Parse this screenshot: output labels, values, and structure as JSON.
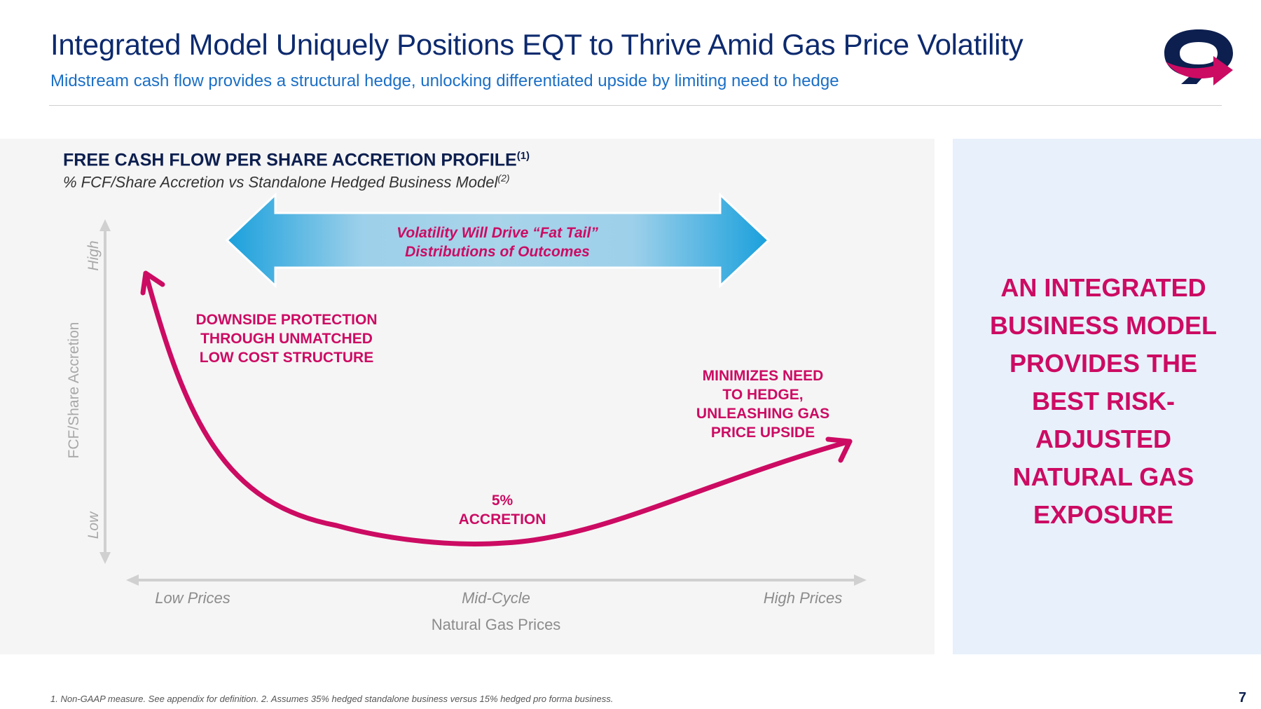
{
  "header": {
    "title": "Integrated Model Uniquely Positions EQT to Thrive Amid Gas Price Volatility",
    "subtitle": "Midstream cash flow provides a structural hedge, unlocking differentiated upside by limiting need to hedge"
  },
  "chart": {
    "title": "FREE CASH FLOW PER SHARE ACCRETION PROFILE",
    "title_footnote": "(1)",
    "subtitle": "% FCF/Share Accretion vs Standalone Hedged Business Model",
    "subtitle_footnote": "(2)",
    "volatility_banner": [
      "Volatility Will Drive “Fat Tail”",
      "Distributions of Outcomes"
    ],
    "downside_label": [
      "DOWNSIDE PROTECTION",
      "THROUGH UNMATCHED",
      "LOW COST STRUCTURE"
    ],
    "upside_label": [
      "MINIMIZES NEED",
      "TO HEDGE,",
      "UNLEASHING GAS",
      "PRICE UPSIDE"
    ],
    "accretion_label": [
      "5%",
      "ACCRETION"
    ]
  },
  "chart_data": {
    "type": "line",
    "title": "FREE CASH FLOW PER SHARE ACCRETION PROFILE",
    "xlabel": "Natural Gas Prices",
    "ylabel": "FCF/Share Accretion",
    "x_tick_labels": [
      "Low Prices",
      "Mid-Cycle",
      "High Prices"
    ],
    "y_tick_labels": [
      "Low",
      "High"
    ],
    "series": [
      {
        "name": "FCF/Share Accretion",
        "points": [
          [
            "Low Prices",
            "High"
          ],
          [
            "Mid-Cycle",
            "5%"
          ],
          [
            "High Prices",
            "Rising"
          ]
        ]
      }
    ]
  },
  "side_panel": {
    "lines": [
      "AN INTEGRATED",
      "BUSINESS MODEL",
      "PROVIDES THE",
      "BEST RISK-",
      "ADJUSTED",
      "NATURAL GAS",
      "EXPOSURE"
    ]
  },
  "colors": {
    "navy": "#0d2a6e",
    "blue": "#1b6fc6",
    "magenta": "#cc0b63",
    "panel_gray": "#f5f5f5",
    "panel_blue": "#e8f0fb"
  },
  "footer": {
    "footnote": "1. Non-GAAP measure. See appendix for definition. 2. Assumes 35% hedged standalone business versus 15% hedged pro forma business.",
    "page_number": "7"
  }
}
